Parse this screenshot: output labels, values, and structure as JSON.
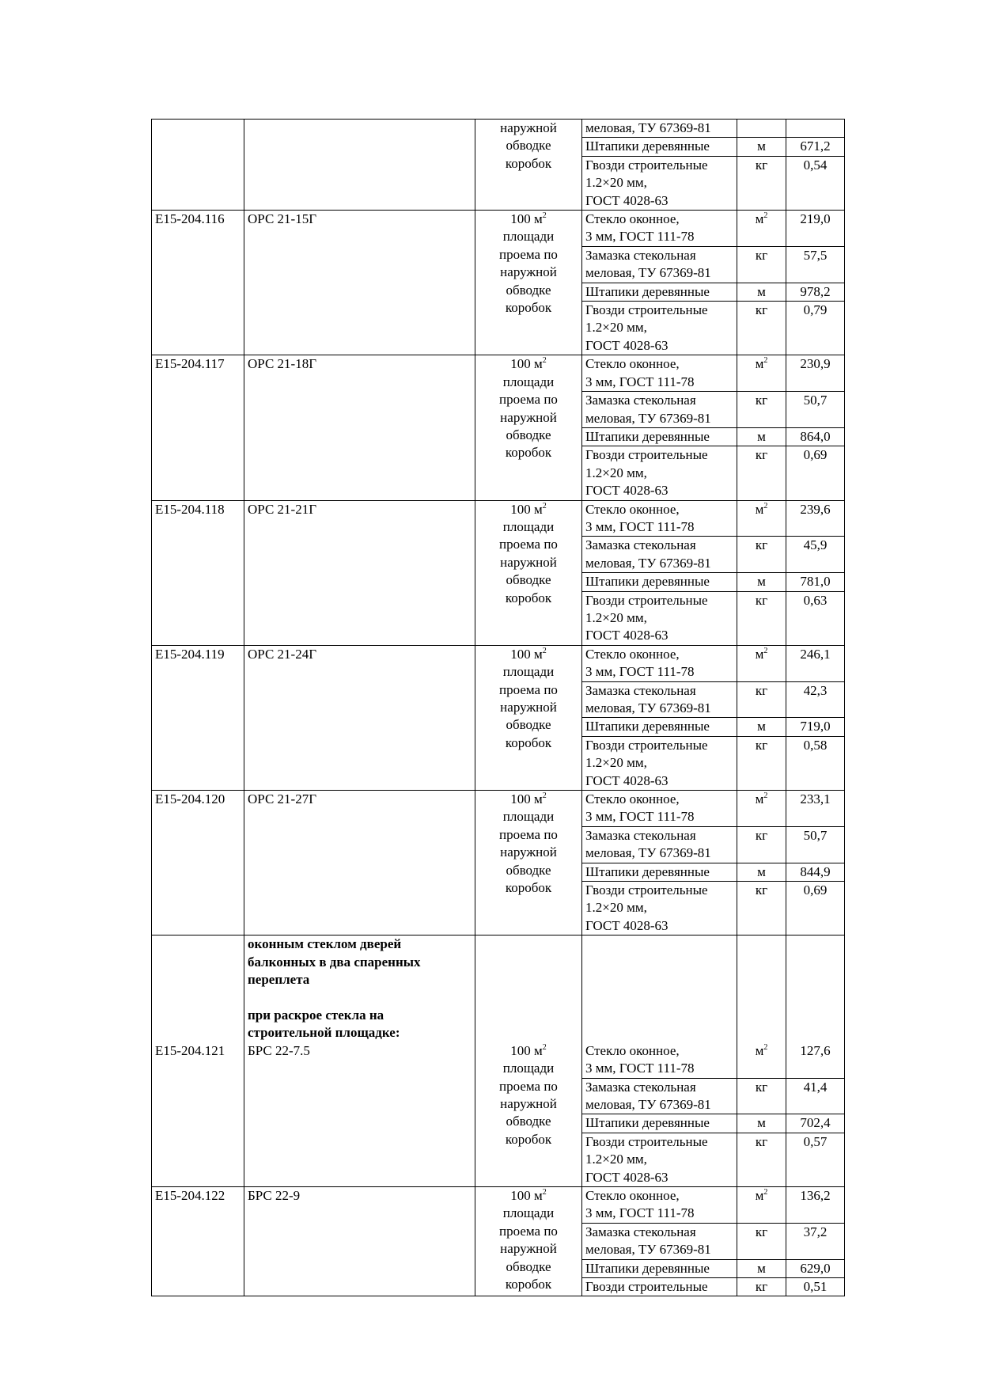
{
  "table": {
    "blocks": [
      {
        "code": "",
        "name": "",
        "unit_lines": [
          "наружной",
          "обводке",
          "коробок"
        ],
        "materials": [
          {
            "name": [
              "меловая, ТУ 67369-81"
            ],
            "unit": "",
            "qty": ""
          },
          {
            "name": [
              "Штапики деревянные"
            ],
            "unit": "м",
            "qty": "671,2"
          },
          {
            "name": [
              "Гвозди строительные",
              "1.2×20 мм,",
              "ГОСТ 4028-63"
            ],
            "unit": "кг",
            "qty": "0,54"
          }
        ]
      },
      {
        "code": "E15-204.116",
        "name": "ОРС 21-15Г",
        "unit_lines": [
          "100 м²",
          "площади",
          "проема по",
          "наружной",
          "обводке",
          "коробок"
        ],
        "materials": [
          {
            "name": [
              "Стекло оконное,",
              "3 мм, ГОСТ 111-78"
            ],
            "unit": "м²",
            "qty": "219,0"
          },
          {
            "name": [
              "Замазка стекольная",
              "меловая, ТУ 67369-81"
            ],
            "unit": "кг",
            "qty": "57,5"
          },
          {
            "name": [
              "Штапики деревянные"
            ],
            "unit": "м",
            "qty": "978,2"
          },
          {
            "name": [
              "Гвозди строительные",
              "1.2×20 мм,",
              "ГОСТ 4028-63"
            ],
            "unit": "кг",
            "qty": "0,79"
          }
        ]
      },
      {
        "code": "E15-204.117",
        "name": "ОРС 21-18Г",
        "unit_lines": [
          "100 м²",
          "площади",
          "проема по",
          "наружной",
          "обводке",
          "коробок"
        ],
        "materials": [
          {
            "name": [
              "Стекло оконное,",
              "3 мм, ГОСТ 111-78"
            ],
            "unit": "м²",
            "qty": "230,9"
          },
          {
            "name": [
              "Замазка стекольная",
              "меловая, ТУ 67369-81"
            ],
            "unit": "кг",
            "qty": "50,7"
          },
          {
            "name": [
              "Штапики деревянные"
            ],
            "unit": "м",
            "qty": "864,0"
          },
          {
            "name": [
              "Гвозди строительные",
              "1.2×20 мм,",
              "ГОСТ 4028-63"
            ],
            "unit": "кг",
            "qty": "0,69"
          }
        ]
      },
      {
        "code": "E15-204.118",
        "name": "ОРС 21-21Г",
        "unit_lines": [
          "100 м²",
          "площади",
          "проема по",
          "наружной",
          "обводке",
          "коробок"
        ],
        "materials": [
          {
            "name": [
              "Стекло оконное,",
              "3 мм, ГОСТ 111-78"
            ],
            "unit": "м²",
            "qty": "239,6"
          },
          {
            "name": [
              "Замазка стекольная",
              "меловая, ТУ 67369-81"
            ],
            "unit": "кг",
            "qty": "45,9"
          },
          {
            "name": [
              "Штапики деревянные"
            ],
            "unit": "м",
            "qty": "781,0"
          },
          {
            "name": [
              "Гвозди строительные",
              "1.2×20 мм,",
              "ГОСТ 4028-63"
            ],
            "unit": "кг",
            "qty": "0,63"
          }
        ]
      },
      {
        "code": "E15-204.119",
        "name": "ОРС 21-24Г",
        "unit_lines": [
          "100 м²",
          "площади",
          "проема по",
          "наружной",
          "обводке",
          "коробок"
        ],
        "materials": [
          {
            "name": [
              "Стекло оконное,",
              "3 мм, ГОСТ 111-78"
            ],
            "unit": "м²",
            "qty": "246,1"
          },
          {
            "name": [
              "Замазка стекольная",
              "меловая, ТУ 67369-81"
            ],
            "unit": "кг",
            "qty": "42,3"
          },
          {
            "name": [
              "Штапики деревянные"
            ],
            "unit": "м",
            "qty": "719,0"
          },
          {
            "name": [
              "Гвозди строительные",
              "1.2×20 мм,",
              "ГОСТ 4028-63"
            ],
            "unit": "кг",
            "qty": "0,58"
          }
        ]
      },
      {
        "code": "E15-204.120",
        "name": "ОРС 21-27Г",
        "unit_lines": [
          "100 м²",
          "площади",
          "проема по",
          "наружной",
          "обводке",
          "коробок"
        ],
        "materials": [
          {
            "name": [
              "Стекло оконное,",
              "3 мм, ГОСТ 111-78"
            ],
            "unit": "м²",
            "qty": "233,1"
          },
          {
            "name": [
              "Замазка стекольная",
              "меловая, ТУ 67369-81"
            ],
            "unit": "кг",
            "qty": "50,7"
          },
          {
            "name": [
              "Штапики деревянные"
            ],
            "unit": "м",
            "qty": "844,9"
          },
          {
            "name": [
              "Гвозди строительные",
              "1.2×20 мм,",
              "ГОСТ 4028-63"
            ],
            "unit": "кг",
            "qty": "0,69"
          }
        ]
      },
      {
        "heading": [
          "оконным стеклом дверей",
          "балконных в два спаренных",
          "переплета",
          "",
          "при раскрое стекла на",
          "строительной площадке:"
        ],
        "code": "E15-204.121",
        "name": "БРС 22-7.5",
        "unit_lines": [
          "100 м²",
          "площади",
          "проема по",
          "наружной",
          "обводке",
          "коробок"
        ],
        "materials": [
          {
            "name": [
              "Стекло оконное,",
              "3 мм, ГОСТ 111-78"
            ],
            "unit": "м²",
            "qty": "127,6"
          },
          {
            "name": [
              "Замазка стекольная",
              "меловая, ТУ 67369-81"
            ],
            "unit": "кг",
            "qty": "41,4"
          },
          {
            "name": [
              "Штапики деревянные"
            ],
            "unit": "м",
            "qty": "702,4"
          },
          {
            "name": [
              "Гвозди строительные",
              "1.2×20 мм,",
              "ГОСТ 4028-63"
            ],
            "unit": "кг",
            "qty": "0,57"
          }
        ]
      },
      {
        "code": "E15-204.122",
        "name": "БРС 22-9",
        "unit_lines": [
          "100 м²",
          "площади",
          "проема по",
          "наружной",
          "обводке",
          "коробок"
        ],
        "materials": [
          {
            "name": [
              "Стекло оконное,",
              "3 мм, ГОСТ 111-78"
            ],
            "unit": "м²",
            "qty": "136,2"
          },
          {
            "name": [
              "Замазка стекольная",
              "меловая, ТУ 67369-81"
            ],
            "unit": "кг",
            "qty": "37,2"
          },
          {
            "name": [
              "Штапики деревянные"
            ],
            "unit": "м",
            "qty": "629,0"
          },
          {
            "name": [
              "Гвозди строительные"
            ],
            "unit": "кг",
            "qty": "0,51"
          }
        ]
      }
    ]
  }
}
